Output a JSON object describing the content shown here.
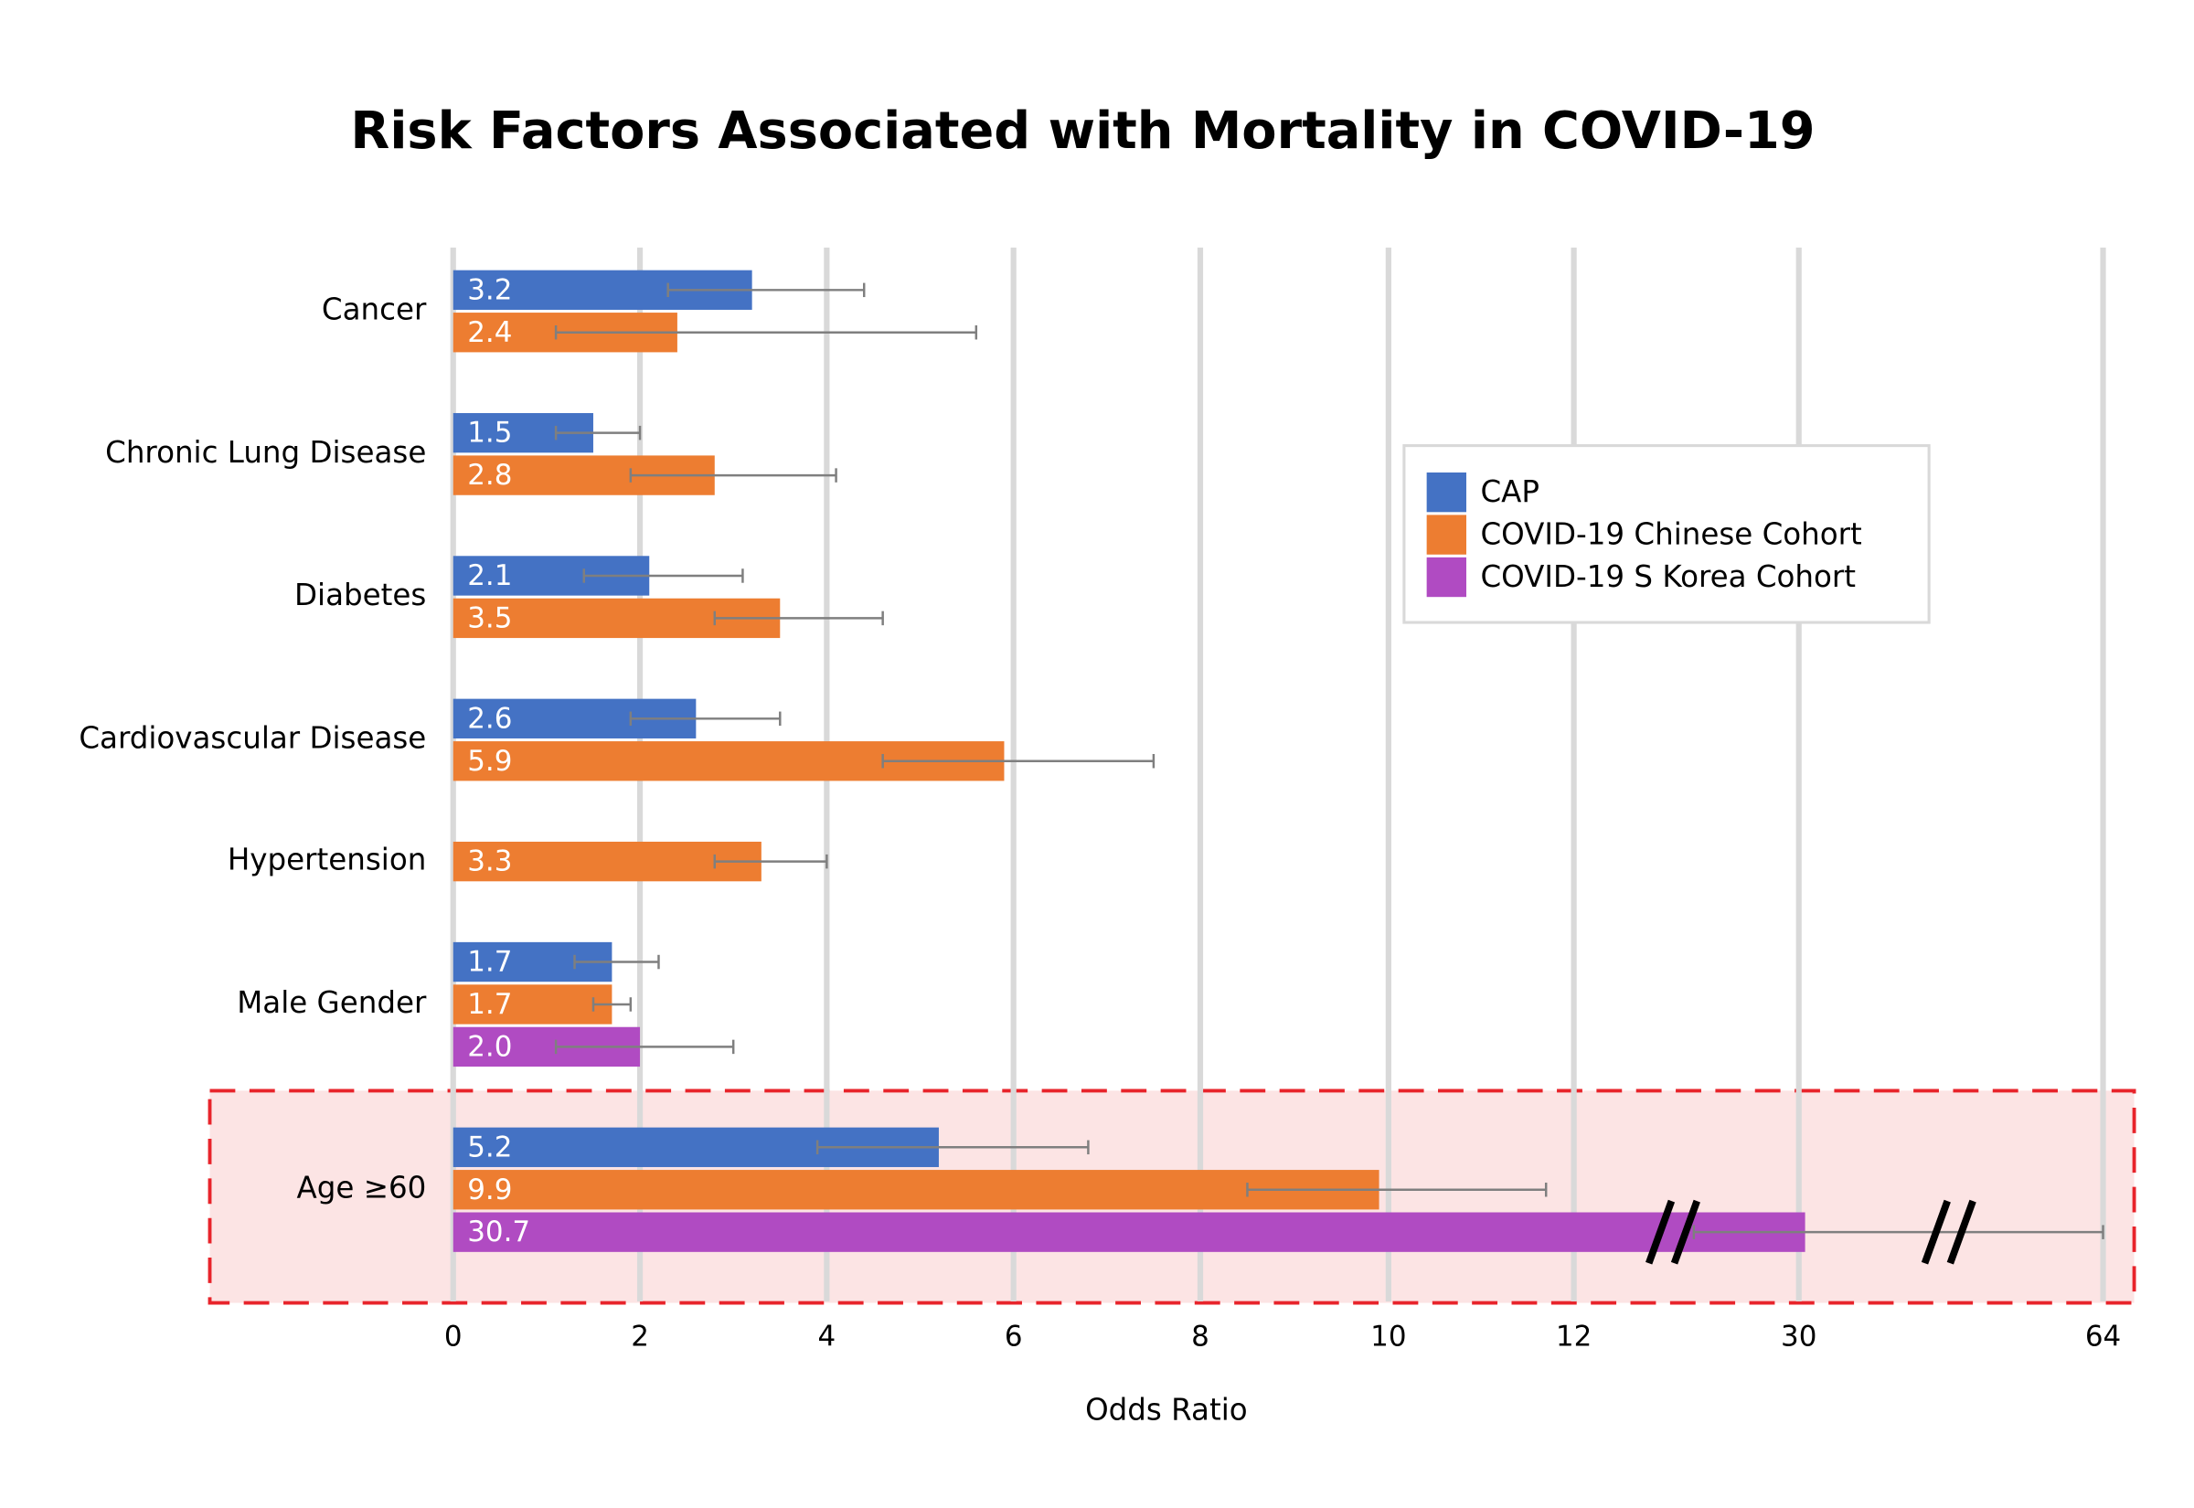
{
  "chart_data": {
    "type": "hbar",
    "title": "Risk Factors Associated with Mortality in COVID-19",
    "x_label": "Odds Ratio",
    "categories": [
      "Cancer",
      "Chronic Lung Disease",
      "Diabetes",
      "Cardiovascular Disease",
      "Hypertension",
      "Male Gender",
      "Age ≥60"
    ],
    "series": [
      {
        "name": "CAP",
        "color": "#4472c4",
        "values": [
          3.2,
          1.5,
          2.1,
          2.6,
          null,
          1.7,
          5.2
        ],
        "error_low": [
          2.3,
          1.1,
          1.4,
          1.9,
          null,
          1.3,
          3.9
        ],
        "error_high": [
          4.4,
          2.0,
          3.1,
          3.5,
          null,
          2.2,
          6.8
        ]
      },
      {
        "name": "COVID-19 Chinese Cohort",
        "color": "#ed7d31",
        "values": [
          2.4,
          2.8,
          3.5,
          5.9,
          3.3,
          1.7,
          9.9
        ],
        "error_low": [
          1.1,
          1.9,
          2.8,
          4.6,
          2.8,
          1.5,
          8.5
        ],
        "error_high": [
          5.6,
          4.1,
          4.6,
          7.5,
          4.0,
          1.9,
          11.7
        ]
      },
      {
        "name": "COVID-19 S Korea Cohort",
        "color": "#b04bc2",
        "values": [
          null,
          null,
          null,
          null,
          null,
          2,
          30.7
        ],
        "value_labels": [
          null,
          null,
          null,
          null,
          null,
          "2.0",
          "30.7"
        ],
        "error_low": [
          null,
          null,
          null,
          null,
          null,
          1.1,
          21.6
        ],
        "error_high": [
          null,
          null,
          null,
          null,
          null,
          3.0,
          64
        ]
      }
    ],
    "xlim": [
      0,
      64
    ],
    "xticks": [
      0,
      2,
      4,
      6,
      8,
      10,
      12,
      30,
      64
    ],
    "grid": true,
    "legend": "upper right"
  }
}
